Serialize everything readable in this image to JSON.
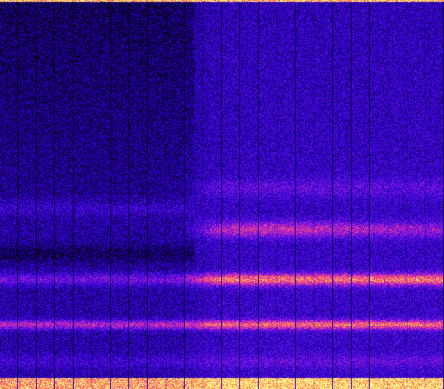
{
  "image": {
    "kind": "spectrogram",
    "colormap": [
      "#000000",
      "#2800c8",
      "#6414e6",
      "#e628b4",
      "#ff823c",
      "#ffff96"
    ],
    "axes_labels_visible": false,
    "grid": false
  }
}
